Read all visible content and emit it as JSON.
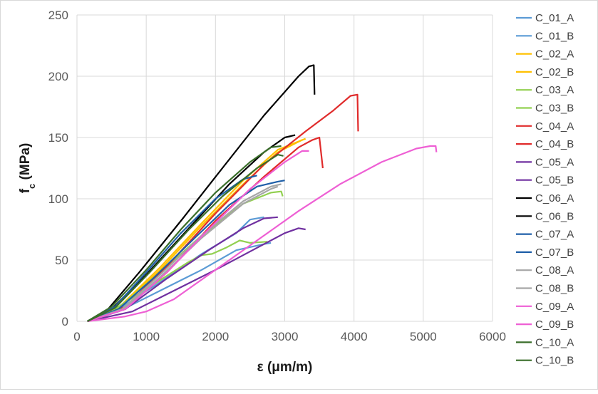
{
  "chart_data": {
    "type": "line",
    "xlabel": "ε (μm/m)",
    "ylabel_main": "f",
    "ylabel_sub": "c",
    "ylabel_unit": " (MPa)",
    "xlim": [
      0,
      6000
    ],
    "ylim": [
      0,
      250
    ],
    "xticks": [
      "0",
      "1000",
      "2000",
      "3000",
      "4000",
      "5000",
      "6000"
    ],
    "yticks": [
      "0",
      "50",
      "100",
      "150",
      "200",
      "250"
    ],
    "grid": true,
    "legend_position": "right",
    "series": [
      {
        "name": "C_01_A",
        "color": "#5b9bd5",
        "points": [
          [
            150,
            0
          ],
          [
            600,
            8
          ],
          [
            1200,
            25
          ],
          [
            1800,
            42
          ],
          [
            2300,
            58
          ],
          [
            2700,
            63
          ],
          [
            2800,
            64
          ]
        ]
      },
      {
        "name": "C_01_B",
        "color": "#5b9bd5",
        "points": [
          [
            150,
            0
          ],
          [
            600,
            10
          ],
          [
            1200,
            32
          ],
          [
            1800,
            55
          ],
          [
            2300,
            72
          ],
          [
            2500,
            83
          ],
          [
            2700,
            85
          ]
        ]
      },
      {
        "name": "C_02_A",
        "color": "#ffc000",
        "points": [
          [
            150,
            0
          ],
          [
            600,
            10
          ],
          [
            1200,
            42
          ],
          [
            1800,
            78
          ],
          [
            2400,
            112
          ],
          [
            2900,
            138
          ],
          [
            3250,
            148
          ]
        ]
      },
      {
        "name": "C_02_B",
        "color": "#ffc000",
        "points": [
          [
            150,
            0
          ],
          [
            600,
            11
          ],
          [
            1200,
            44
          ],
          [
            1800,
            80
          ],
          [
            2400,
            115
          ],
          [
            2900,
            140
          ],
          [
            3300,
            149
          ]
        ]
      },
      {
        "name": "C_03_A",
        "color": "#92d050",
        "points": [
          [
            150,
            0
          ],
          [
            600,
            12
          ],
          [
            1100,
            30
          ],
          [
            1600,
            48
          ],
          [
            1800,
            54
          ],
          [
            1950,
            55
          ],
          [
            2150,
            60
          ],
          [
            2350,
            66
          ],
          [
            2500,
            64
          ],
          [
            2750,
            65
          ]
        ]
      },
      {
        "name": "C_03_B",
        "color": "#92d050",
        "points": [
          [
            150,
            0
          ],
          [
            600,
            11
          ],
          [
            1200,
            40
          ],
          [
            1800,
            70
          ],
          [
            2400,
            96
          ],
          [
            2800,
            105
          ],
          [
            2950,
            106
          ],
          [
            2970,
            102
          ]
        ]
      },
      {
        "name": "C_04_A",
        "color": "#e02b2b",
        "points": [
          [
            150,
            0
          ],
          [
            700,
            12
          ],
          [
            1300,
            45
          ],
          [
            2000,
            88
          ],
          [
            2700,
            128
          ],
          [
            3300,
            155
          ],
          [
            3700,
            172
          ],
          [
            3950,
            184
          ],
          [
            4050,
            185
          ],
          [
            4060,
            155
          ]
        ]
      },
      {
        "name": "C_04_B",
        "color": "#e02b2b",
        "points": [
          [
            150,
            0
          ],
          [
            700,
            10
          ],
          [
            1300,
            40
          ],
          [
            2000,
            82
          ],
          [
            2700,
            118
          ],
          [
            3200,
            142
          ],
          [
            3400,
            148
          ],
          [
            3500,
            150
          ],
          [
            3550,
            125
          ]
        ]
      },
      {
        "name": "C_05_A",
        "color": "#7030a0",
        "points": [
          [
            150,
            0
          ],
          [
            800,
            8
          ],
          [
            1400,
            25
          ],
          [
            2000,
            42
          ],
          [
            2600,
            60
          ],
          [
            3000,
            72
          ],
          [
            3200,
            76
          ],
          [
            3300,
            75
          ]
        ]
      },
      {
        "name": "C_05_B",
        "color": "#7030a0",
        "points": [
          [
            150,
            0
          ],
          [
            700,
            10
          ],
          [
            1300,
            35
          ],
          [
            1900,
            58
          ],
          [
            2400,
            76
          ],
          [
            2700,
            84
          ],
          [
            2900,
            85
          ]
        ]
      },
      {
        "name": "C_06_A",
        "color": "#000000",
        "points": [
          [
            150,
            0
          ],
          [
            450,
            10
          ],
          [
            900,
            40
          ],
          [
            1500,
            82
          ],
          [
            2100,
            125
          ],
          [
            2700,
            168
          ],
          [
            3200,
            200
          ],
          [
            3350,
            208
          ],
          [
            3420,
            209
          ],
          [
            3430,
            185
          ]
        ]
      },
      {
        "name": "C_06_B",
        "color": "#000000",
        "points": [
          [
            150,
            0
          ],
          [
            500,
            10
          ],
          [
            1000,
            38
          ],
          [
            1600,
            75
          ],
          [
            2200,
            112
          ],
          [
            2700,
            138
          ],
          [
            3000,
            150
          ],
          [
            3150,
            152
          ]
        ]
      },
      {
        "name": "C_07_A",
        "color": "#1f5fa8",
        "points": [
          [
            150,
            0
          ],
          [
            600,
            10
          ],
          [
            1100,
            35
          ],
          [
            1700,
            68
          ],
          [
            2200,
            95
          ],
          [
            2600,
            110
          ],
          [
            2900,
            114
          ],
          [
            3000,
            115
          ]
        ]
      },
      {
        "name": "C_07_B",
        "color": "#1f5fa8",
        "points": [
          [
            150,
            0
          ],
          [
            550,
            12
          ],
          [
            1000,
            40
          ],
          [
            1500,
            72
          ],
          [
            2000,
            100
          ],
          [
            2400,
            116
          ],
          [
            2600,
            119
          ]
        ]
      },
      {
        "name": "C_08_A",
        "color": "#a6a6a6",
        "points": [
          [
            150,
            0
          ],
          [
            650,
            10
          ],
          [
            1200,
            38
          ],
          [
            1800,
            70
          ],
          [
            2400,
            98
          ],
          [
            2800,
            110
          ],
          [
            2950,
            112
          ]
        ]
      },
      {
        "name": "C_08_B",
        "color": "#a6a6a6",
        "points": [
          [
            150,
            0
          ],
          [
            650,
            9
          ],
          [
            1200,
            36
          ],
          [
            1800,
            68
          ],
          [
            2400,
            96
          ],
          [
            2800,
            108
          ],
          [
            2900,
            110
          ]
        ]
      },
      {
        "name": "C_09_A",
        "color": "#ee5fd4",
        "points": [
          [
            150,
            0
          ],
          [
            700,
            4
          ],
          [
            1000,
            8
          ],
          [
            1400,
            18
          ],
          [
            2000,
            42
          ],
          [
            2600,
            66
          ],
          [
            3200,
            90
          ],
          [
            3800,
            112
          ],
          [
            4400,
            130
          ],
          [
            4900,
            141
          ],
          [
            5100,
            143
          ],
          [
            5180,
            143
          ],
          [
            5190,
            138
          ]
        ]
      },
      {
        "name": "C_09_B",
        "color": "#ee5fd4",
        "points": [
          [
            150,
            0
          ],
          [
            700,
            10
          ],
          [
            1300,
            40
          ],
          [
            1900,
            75
          ],
          [
            2500,
            108
          ],
          [
            3000,
            130
          ],
          [
            3250,
            139
          ],
          [
            3350,
            139
          ]
        ]
      },
      {
        "name": "C_10_A",
        "color": "#3a6e2a",
        "points": [
          [
            150,
            0
          ],
          [
            500,
            12
          ],
          [
            1000,
            42
          ],
          [
            1500,
            75
          ],
          [
            2000,
            105
          ],
          [
            2500,
            130
          ],
          [
            2800,
            142
          ],
          [
            2950,
            143
          ]
        ]
      },
      {
        "name": "C_10_B",
        "color": "#3a6e2a",
        "points": [
          [
            150,
            0
          ],
          [
            550,
            11
          ],
          [
            1050,
            40
          ],
          [
            1600,
            74
          ],
          [
            2100,
            102
          ],
          [
            2600,
            125
          ],
          [
            2900,
            136
          ],
          [
            2980,
            135
          ]
        ]
      }
    ]
  }
}
